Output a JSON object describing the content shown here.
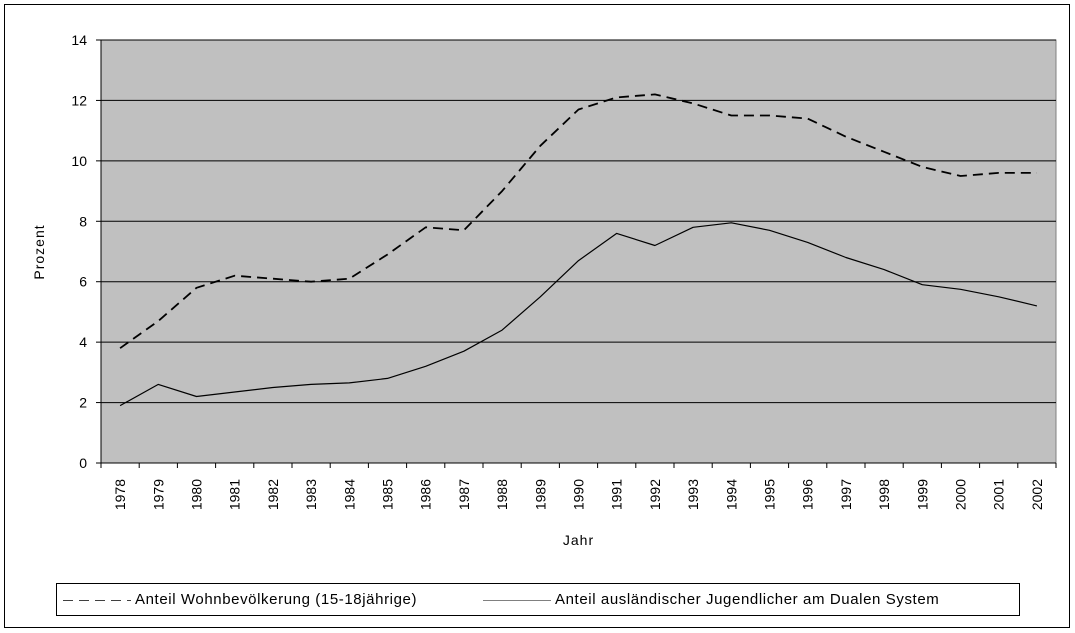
{
  "chart_data": {
    "type": "line",
    "title": "",
    "xlabel": "Jahr",
    "ylabel": "Prozent",
    "ylim": [
      0,
      14
    ],
    "yticks": [
      0,
      2,
      4,
      6,
      8,
      10,
      12,
      14
    ],
    "grid": true,
    "legend_position": "bottom",
    "plot_background": "#c0c0c0",
    "categories": [
      "1978",
      "1979",
      "1980",
      "1981",
      "1982",
      "1983",
      "1984",
      "1985",
      "1986",
      "1987",
      "1988",
      "1989",
      "1990",
      "1991",
      "1992",
      "1993",
      "1994",
      "1995",
      "1996",
      "1997",
      "1998",
      "1999",
      "2000",
      "2001",
      "2002"
    ],
    "series": [
      {
        "name": "Anteil Wohnbevölkerung (15-18jährige)",
        "style": "dashed",
        "color": "#000000",
        "values": [
          3.8,
          4.7,
          5.8,
          6.2,
          6.1,
          6.0,
          6.1,
          6.9,
          7.8,
          7.7,
          9.0,
          10.5,
          11.7,
          12.1,
          12.2,
          11.9,
          11.5,
          11.5,
          11.4,
          10.8,
          10.3,
          9.8,
          9.5,
          9.6,
          9.6
        ]
      },
      {
        "name": "Anteil ausländischer Jugendlicher am Dualen System",
        "style": "solid",
        "color": "#000000",
        "values": [
          1.9,
          2.6,
          2.2,
          2.35,
          2.5,
          2.6,
          2.65,
          2.8,
          3.2,
          3.7,
          4.4,
          5.5,
          6.7,
          7.6,
          7.2,
          7.8,
          7.95,
          7.7,
          7.3,
          6.8,
          6.4,
          5.9,
          5.75,
          5.5,
          5.2
        ]
      }
    ]
  }
}
